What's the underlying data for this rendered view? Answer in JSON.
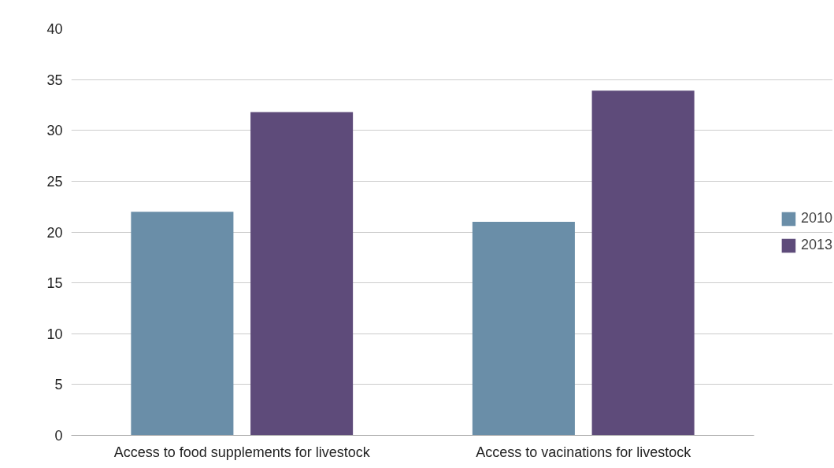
{
  "chart_data": {
    "type": "bar",
    "categories": [
      "Access to food supplements for livestock",
      "Access to vacinations for livestock"
    ],
    "series": [
      {
        "name": "2010",
        "color": "#6a8ea8",
        "values": [
          22,
          21
        ]
      },
      {
        "name": "2013",
        "color": "#5e4b7a",
        "values": [
          31.8,
          33.9
        ]
      }
    ],
    "ylim": [
      0,
      40
    ],
    "yticks": [
      0,
      5,
      10,
      15,
      20,
      25,
      30,
      35,
      40
    ],
    "grid": "y",
    "legend": "right"
  }
}
